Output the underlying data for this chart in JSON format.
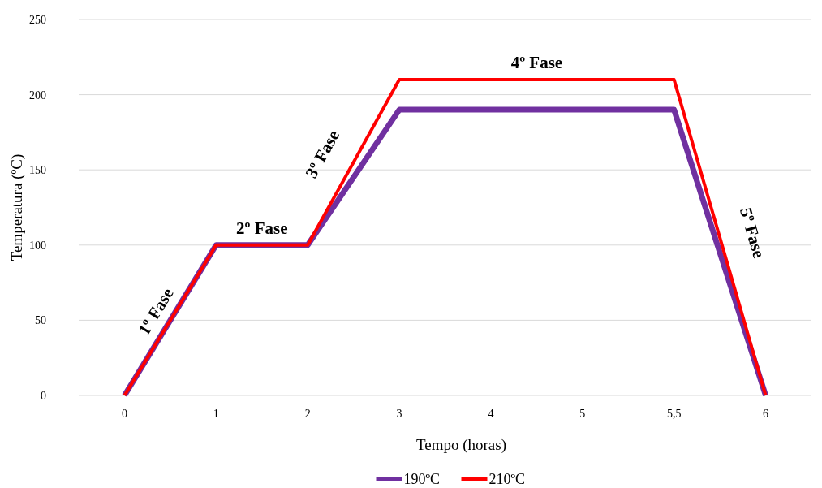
{
  "chart_data": {
    "type": "line",
    "xlabel": "Tempo (horas)",
    "ylabel": "Temperatura (ºC)",
    "categories": [
      "0",
      "1",
      "2",
      "3",
      "4",
      "5",
      "5,5",
      "6"
    ],
    "series": [
      {
        "name": "190ºC",
        "color": "#7030a0",
        "values": [
          0,
          100,
          100,
          190,
          190,
          190,
          190,
          0
        ]
      },
      {
        "name": "210ºC",
        "color": "#ff0000",
        "values": [
          0,
          100,
          100,
          210,
          210,
          210,
          210,
          0
        ]
      }
    ],
    "ylim": [
      0,
      250
    ],
    "yticks": [
      0,
      50,
      100,
      150,
      200,
      250
    ],
    "grid": "y",
    "legend": "bottom",
    "marker": "none",
    "line_style": "solid",
    "annotations": [
      "1º Fase",
      "2º Fase",
      "3º Fase",
      "4º Fase",
      "5º Fase"
    ]
  }
}
